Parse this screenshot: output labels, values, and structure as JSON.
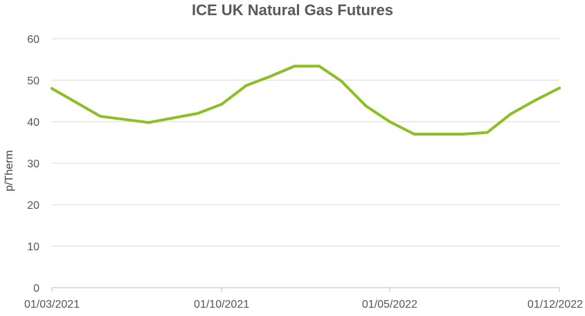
{
  "chart_data": {
    "type": "line",
    "title": "ICE UK Natural Gas Futures",
    "xlabel": "",
    "ylabel": "p/Therm",
    "ylim": [
      0,
      60
    ],
    "yticks": [
      0,
      10,
      20,
      30,
      40,
      50,
      60
    ],
    "xticks": [
      "01/03/2021",
      "01/10/2021",
      "01/05/2022",
      "01/12/2022"
    ],
    "xlim": [
      "2021-03-01",
      "2022-12-01"
    ],
    "grid": true,
    "legend": "none",
    "colors": {
      "line": "#8cbf26",
      "grid": "#d9d9d9",
      "axis": "#bfbfbf"
    },
    "series": [
      {
        "x": [
          "2021-03-01",
          "2021-05-01",
          "2021-07-01",
          "2021-09-01",
          "2021-10-01",
          "2021-11-01",
          "2021-12-01",
          "2022-01-01",
          "2022-02-01",
          "2022-03-01",
          "2022-04-01",
          "2022-05-01",
          "2022-06-01",
          "2022-07-01",
          "2022-08-01",
          "2022-09-01",
          "2022-10-01",
          "2022-11-01",
          "2022-12-01"
        ],
        "values": [
          48.0,
          41.3,
          39.8,
          42.0,
          44.2,
          48.7,
          50.9,
          53.4,
          53.4,
          49.8,
          43.8,
          40.0,
          37.0,
          37.0,
          37.0,
          37.4,
          41.9,
          45.2,
          48.1
        ]
      }
    ]
  }
}
